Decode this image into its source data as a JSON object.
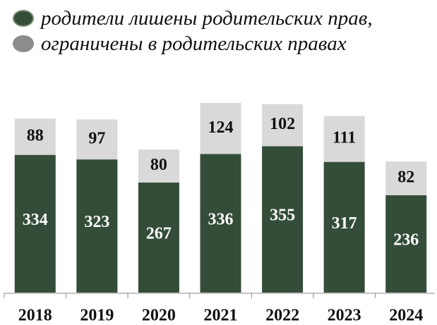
{
  "chart_data": {
    "type": "stacked_bar",
    "categories": [
      "2018",
      "2019",
      "2020",
      "2021",
      "2022",
      "2023",
      "2024"
    ],
    "series": [
      {
        "name": "родители лишены родительских прав,",
        "color": "#344d38",
        "values": [
          334,
          323,
          267,
          336,
          355,
          317,
          236
        ]
      },
      {
        "name": "ограничены в родительских правах",
        "color": "#d9d9d9",
        "values": [
          88,
          97,
          80,
          124,
          102,
          111,
          82
        ]
      }
    ],
    "legend": "top"
  }
}
